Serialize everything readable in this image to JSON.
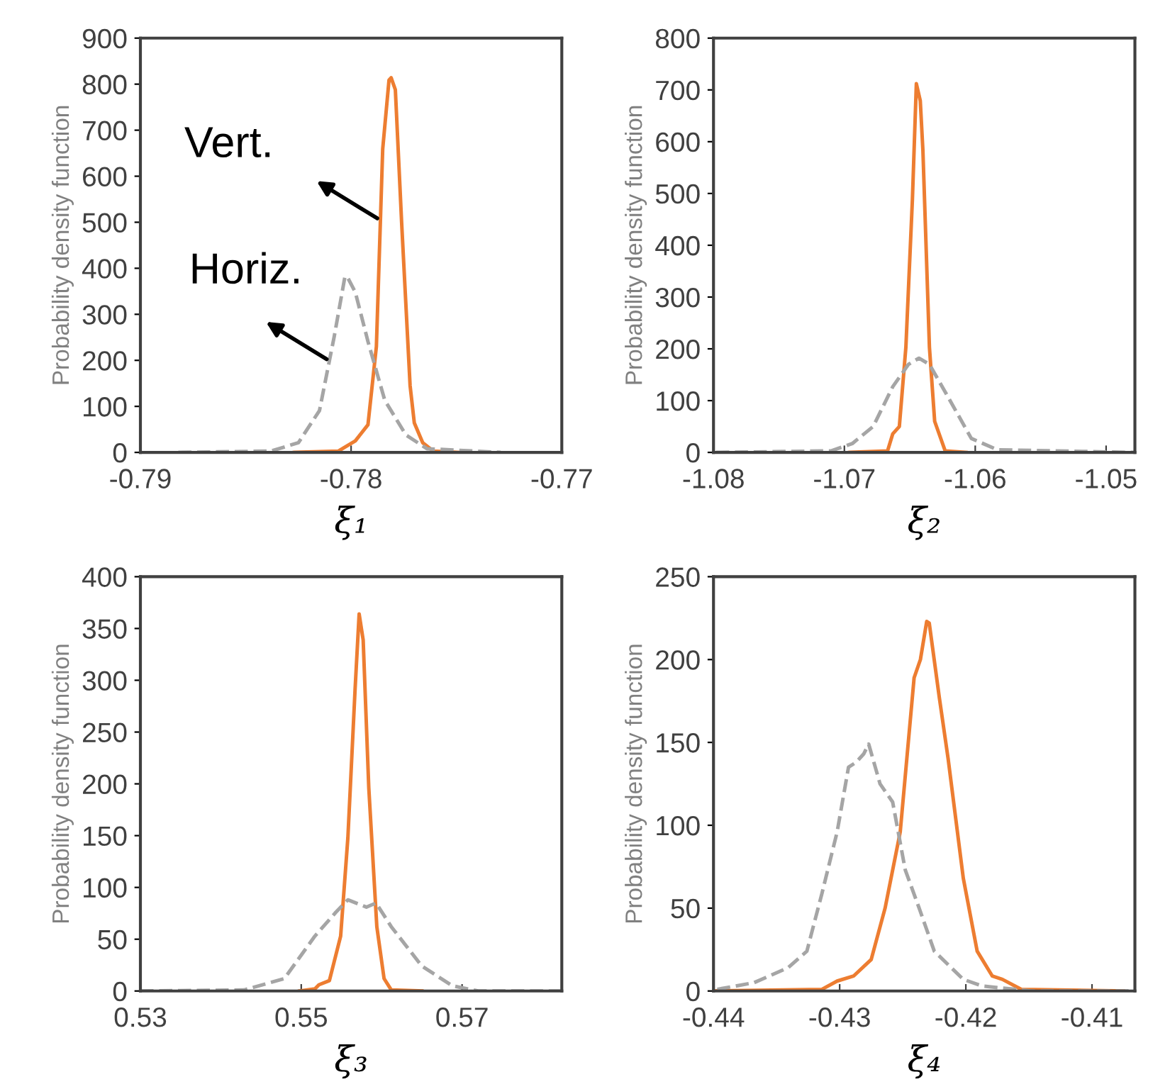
{
  "chart_data": [
    {
      "type": "line",
      "xlabel": "ξ₁",
      "ylabel": "Probability density function",
      "xlim": [
        -0.79,
        -0.77
      ],
      "xticks": [
        -0.79,
        -0.78,
        -0.77
      ],
      "ylim": [
        0,
        900
      ],
      "yticks": [
        0,
        100,
        200,
        300,
        400,
        500,
        600,
        700,
        800,
        900
      ],
      "grid": false,
      "legend": false,
      "annotations": [
        "Vert.",
        "Horiz."
      ],
      "series": [
        {
          "color": "#ed7d31",
          "line_style": "solid",
          "x": [
            -0.7827,
            -0.7806,
            -0.7798,
            -0.7792,
            -0.7788,
            -0.7785,
            -0.7782,
            -0.7781,
            -0.7779,
            -0.7776,
            -0.7772,
            -0.777,
            -0.7766,
            -0.7761,
            -0.7749
          ],
          "values": [
            0,
            3,
            25,
            60,
            230,
            659,
            809,
            814,
            788,
            498,
            145,
            64,
            21,
            3,
            0
          ]
        },
        {
          "color": "#a5a5a5",
          "line_style": "dashed",
          "x": [
            -0.7882,
            -0.7838,
            -0.7825,
            -0.7815,
            -0.7808,
            -0.7803,
            -0.7802,
            -0.7798,
            -0.7792,
            -0.7784,
            -0.7774,
            -0.7764,
            -0.7729
          ],
          "values": [
            0,
            3,
            21,
            91,
            252,
            380,
            383,
            348,
            241,
            113,
            38,
            8,
            0
          ]
        }
      ]
    },
    {
      "type": "line",
      "xlabel": "ξ₂",
      "ylabel": "Probability density function",
      "xlim": [
        -1.08,
        -1.0478
      ],
      "xticks": [
        -1.08,
        -1.07,
        -1.06,
        -1.05
      ],
      "ylim": [
        0,
        800
      ],
      "yticks": [
        0,
        100,
        200,
        300,
        400,
        500,
        600,
        700,
        800
      ],
      "grid": false,
      "legend": false,
      "series": [
        {
          "color": "#ed7d31",
          "line_style": "solid",
          "x": [
            -1.0696,
            -1.0667,
            -1.0663,
            -1.0658,
            -1.0653,
            -1.0648,
            -1.0645,
            -1.0642,
            -1.064,
            -1.0635,
            -1.0631,
            -1.0623,
            -1.0607
          ],
          "values": [
            0,
            3,
            36,
            50,
            203,
            489,
            712,
            679,
            584,
            203,
            60,
            3,
            0
          ]
        },
        {
          "color": "#a5a5a5",
          "line_style": "dashed",
          "x": [
            -1.0798,
            -1.071,
            -1.0694,
            -1.0678,
            -1.0663,
            -1.0651,
            -1.0643,
            -1.0635,
            -1.0623,
            -1.0603,
            -1.0583,
            -1.0479
          ],
          "values": [
            0,
            3,
            17,
            50,
            127,
            170,
            182,
            170,
            117,
            27,
            5,
            0
          ]
        }
      ]
    },
    {
      "type": "line",
      "xlabel": "ξ₃",
      "ylabel": "Probability density function",
      "xlim": [
        0.53,
        0.5824
      ],
      "xticks": [
        0.53,
        0.55,
        0.57
      ],
      "ylim": [
        0,
        400
      ],
      "yticks": [
        0,
        50,
        100,
        150,
        200,
        250,
        300,
        350,
        400
      ],
      "grid": false,
      "legend": false,
      "series": [
        {
          "color": "#ed7d31",
          "line_style": "solid",
          "x": [
            0.5498,
            0.5517,
            0.5522,
            0.5535,
            0.5549,
            0.5558,
            0.5567,
            0.5572,
            0.5577,
            0.5584,
            0.5594,
            0.5603,
            0.5612,
            0.565
          ],
          "values": [
            0,
            2,
            6,
            10,
            53,
            148,
            292,
            364,
            339,
            196,
            62,
            12,
            1,
            0
          ]
        },
        {
          "color": "#a5a5a5",
          "line_style": "dashed",
          "x": [
            0.53,
            0.5429,
            0.5479,
            0.5517,
            0.5543,
            0.5558,
            0.5568,
            0.5581,
            0.5593,
            0.5612,
            0.565,
            0.5688,
            0.572,
            0.5824
          ],
          "values": [
            0,
            1,
            12,
            53,
            76,
            88,
            85,
            81,
            85,
            62,
            24,
            5,
            0,
            0
          ]
        }
      ]
    },
    {
      "type": "line",
      "xlabel": "ξ₄",
      "ylabel": "Probability density function",
      "xlim": [
        -0.44,
        -0.4066
      ],
      "xticks": [
        -0.44,
        -0.43,
        -0.42,
        -0.41
      ],
      "ylim": [
        0,
        250
      ],
      "yticks": [
        0,
        50,
        100,
        150,
        200,
        250
      ],
      "grid": false,
      "legend": false,
      "series": [
        {
          "color": "#ed7d31",
          "line_style": "solid",
          "x": [
            -0.44,
            -0.4314,
            -0.4302,
            -0.4289,
            -0.4275,
            -0.4264,
            -0.4252,
            -0.4241,
            -0.4236,
            -0.4231,
            -0.4229,
            -0.4221,
            -0.4214,
            -0.4202,
            -0.4191,
            -0.4179,
            -0.4171,
            -0.4156,
            -0.4075
          ],
          "values": [
            0,
            1,
            6,
            9,
            19,
            50,
            96,
            189,
            200,
            223,
            222,
            177,
            140,
            68,
            24,
            9,
            7,
            1,
            0
          ]
        },
        {
          "color": "#a5a5a5",
          "line_style": "dashed",
          "x": [
            -0.4397,
            -0.4368,
            -0.4341,
            -0.4326,
            -0.4314,
            -0.4302,
            -0.4293,
            -0.4287,
            -0.4281,
            -0.4277,
            -0.4268,
            -0.4258,
            -0.4248,
            -0.4237,
            -0.4225,
            -0.4202,
            -0.4187,
            -0.4148,
            -0.4071
          ],
          "values": [
            1,
            5,
            14,
            24,
            59,
            96,
            135,
            138,
            143,
            149,
            125,
            114,
            73,
            50,
            24,
            7,
            3,
            0,
            0
          ]
        }
      ]
    }
  ]
}
